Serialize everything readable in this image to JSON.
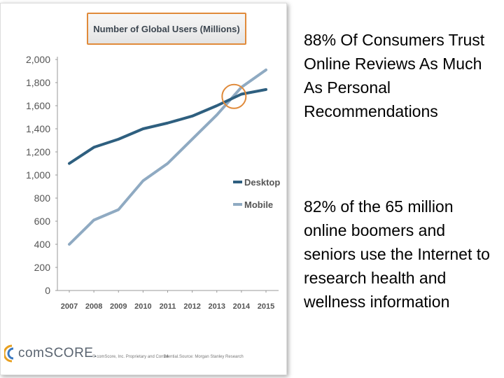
{
  "chart_data": {
    "type": "line",
    "title": "Number of Global Users (Millions)",
    "xlabel": "",
    "ylabel": "",
    "categories": [
      "2007",
      "2008",
      "2009",
      "2010",
      "2011",
      "2012",
      "2013",
      "2014",
      "2015"
    ],
    "ylim": [
      0,
      2000
    ],
    "yticks": [
      0,
      200,
      400,
      600,
      800,
      1000,
      1200,
      1400,
      1600,
      1800,
      2000
    ],
    "ytick_labels": [
      "0",
      "200",
      "400",
      "600",
      "800",
      "1,000",
      "1,200",
      "1,400",
      "1,600",
      "1,800",
      "2,000"
    ],
    "legend_position": "right-middle",
    "grid": false,
    "series": [
      {
        "name": "Desktop",
        "color": "#2e5f7f",
        "values": [
          1100,
          1240,
          1310,
          1400,
          1450,
          1510,
          1600,
          1700,
          1740
        ]
      },
      {
        "name": "Mobile",
        "color": "#8faac2",
        "values": [
          400,
          610,
          700,
          950,
          1100,
          1310,
          1520,
          1760,
          1910
        ]
      }
    ],
    "annotation": {
      "type": "circle",
      "color": "#e08a3a",
      "x_value": 2013.7,
      "y_value": 1680
    }
  },
  "logo_text": "comSCORE.",
  "footer_left": "© comScore, Inc.  Proprietary and Confidential.",
  "footer_page": "24",
  "footer_source": "Source: Morgan Stanley Research",
  "bullets": [
    "88% Of Consumers Trust Online Reviews As Much As Personal Recommendations",
    "82% of the 65 million online boomers and seniors use the Internet to research health and wellness information"
  ]
}
